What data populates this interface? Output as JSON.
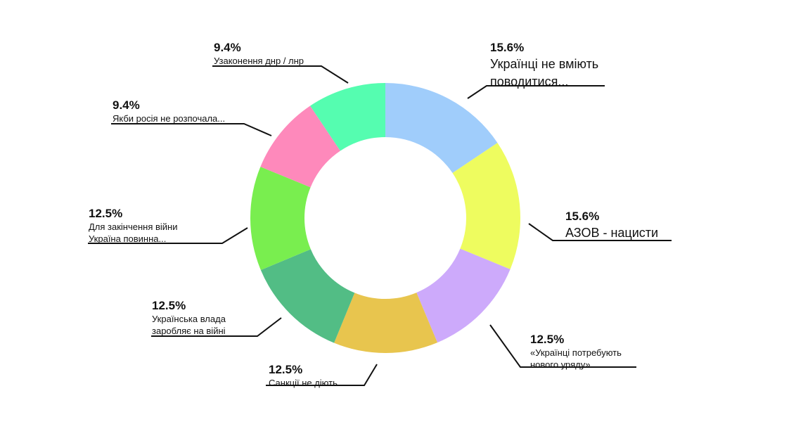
{
  "chart_data": {
    "type": "pie",
    "variant": "donut",
    "slices": [
      {
        "name_lines": [
          "Українці не вміють",
          "поводитися..."
        ],
        "value": 15.6,
        "label": "15.6%",
        "color": "#a0cdfb"
      },
      {
        "name_lines": [
          "АЗОВ - нацисти"
        ],
        "value": 15.6,
        "label": "15.6%",
        "color": "#eefc5f"
      },
      {
        "name_lines": [
          "«Українці потребують",
          "нового уряду»"
        ],
        "value": 12.5,
        "label": "12.5%",
        "color": "#cdaafb"
      },
      {
        "name_lines": [
          "Санкції не діють"
        ],
        "value": 12.5,
        "label": "12.5%",
        "color": "#e8c54e"
      },
      {
        "name_lines": [
          "Українська влада",
          "заробляє на війні"
        ],
        "value": 12.5,
        "label": "12.5%",
        "color": "#52bd85"
      },
      {
        "name_lines": [
          "Для закінчення війни",
          "Україна повинна..."
        ],
        "value": 12.5,
        "label": "12.5%",
        "color": "#79ee4f"
      },
      {
        "name_lines": [
          "Якби росія не розпочала..."
        ],
        "value": 9.4,
        "label": "9.4%",
        "color": "#fe89bb"
      },
      {
        "name_lines": [
          "Узаконення днр / лнр"
        ],
        "value": 9.4,
        "label": "9.4%",
        "color": "#55fdb0"
      }
    ],
    "legend": "none",
    "labels": "outside-with-leader-lines"
  }
}
